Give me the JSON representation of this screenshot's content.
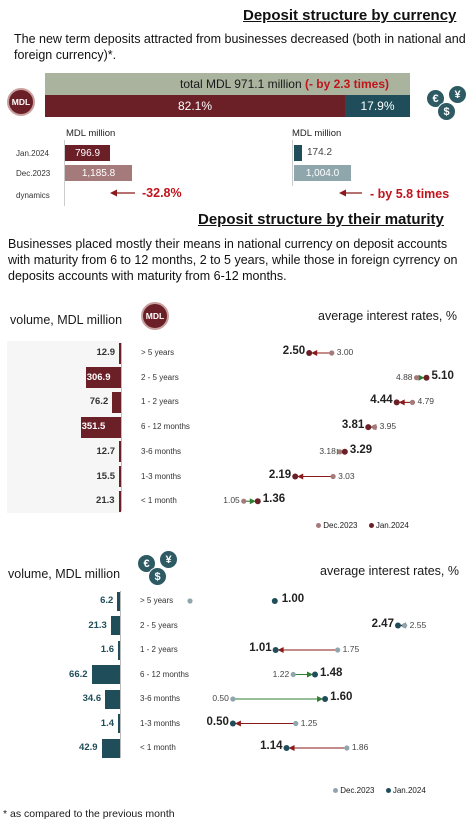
{
  "section1": {
    "title": "Deposit structure by currency",
    "description": "The new term deposits attracted from businesses decreased (both in national and foreign currency)*.",
    "mdl_badge": "MDL",
    "total_label": "total MDL 971.1 million",
    "total_change": "(- by 2.3 times)",
    "share_mdl": "82.1%",
    "share_fx": "17.9%",
    "unit_left": "MDL million",
    "unit_right": "MDL million",
    "row_jan": "Jan.2024",
    "row_dec": "Dec.2023",
    "row_dyn": "dynamics",
    "mdl_jan": "796.9",
    "mdl_dec": "1,185.8",
    "fx_jan": "174.2",
    "fx_dec": "1,004.0",
    "mdl_dynamics": "-32.8%",
    "fx_dynamics": "- by 5.8 times",
    "currency_icons": [
      "euro-coin",
      "dollar-coin",
      "yen-coin"
    ]
  },
  "section2": {
    "title": "Deposit structure by their maturity",
    "description": "Businesses placed mostly their means in national currency on deposit accounts with maturity from 6 to 12 months,  2 to 5 years, while those in foreign cyrrency on deposits accounts with maturity from 6-12 months."
  },
  "colors": {
    "mdl_dark": "#6b2027",
    "mdl_light": "#a57a7b",
    "fx_dark": "#1f4e5a",
    "fx_light": "#8fa7ac",
    "arrow_red": "#8b1a1a",
    "arrow_green": "#2e7d32",
    "share_grey": "#a9b39e"
  },
  "chart_data": [
    {
      "type": "bar",
      "currency": "MDL",
      "ylabel": "volume, MDL million",
      "categories": [
        "> 5 years",
        "2 - 5 years",
        "1 - 2 years",
        "6 - 12 months",
        "3-6 months",
        "1-3 months",
        "< 1 month"
      ],
      "values": [
        12.9,
        306.9,
        76.2,
        351.5,
        12.7,
        15.5,
        21.3
      ],
      "value_labels": [
        "12.9",
        "306.9",
        "76.2",
        "351.5",
        "12.7",
        "15.5",
        "21.3"
      ]
    },
    {
      "type": "scatter",
      "currency": "MDL",
      "title": "average interest rates, %",
      "categories": [
        "> 5 years",
        "2 - 5 years",
        "1 - 2 years",
        "6 - 12 months",
        "3-6 months",
        "1-3 months",
        "< 1 month"
      ],
      "series": [
        {
          "name": "Dec.2023",
          "values": [
            3.0,
            4.88,
            4.79,
            3.95,
            3.18,
            3.03,
            1.05
          ],
          "labels": [
            "3.00",
            "4.88",
            "4.79",
            "3.95",
            "3.18",
            "3.03",
            "1.05"
          ]
        },
        {
          "name": "Jan.2024",
          "values": [
            2.5,
            5.1,
            4.44,
            3.81,
            3.29,
            2.19,
            1.36
          ],
          "labels": [
            "2.50",
            "5.10",
            "4.44",
            "3.81",
            "3.29",
            "2.19",
            "1.36"
          ]
        }
      ],
      "xlim": [
        0.7,
        5.4
      ]
    },
    {
      "type": "bar",
      "currency": "foreign",
      "ylabel": "volume, MDL million",
      "categories": [
        "> 5 years",
        "2 - 5 years",
        "1 - 2 years",
        "6 - 12 months",
        "3-6 months",
        "1-3 months",
        "< 1 month"
      ],
      "values": [
        6.2,
        21.3,
        1.6,
        66.2,
        34.6,
        1.4,
        42.9
      ],
      "value_labels": [
        "6.2",
        "21.3",
        "1.6",
        "66.2",
        "34.6",
        "1.4",
        "42.9"
      ]
    },
    {
      "type": "scatter",
      "currency": "foreign",
      "title": "average interest rates, %",
      "categories": [
        "> 5 years",
        "2 - 5 years",
        "1 - 2 years",
        "6 - 12 months",
        "3-6 months",
        "1-3 months",
        "< 1 month"
      ],
      "series": [
        {
          "name": "Dec.2023",
          "values": [
            null,
            2.55,
            1.75,
            1.22,
            0.5,
            1.25,
            1.86
          ],
          "labels": [
            "",
            "2.55",
            "1.75",
            "1.22",
            "0.50",
            "1.25",
            "1.86"
          ]
        },
        {
          "name": "Jan.2024",
          "values": [
            1.0,
            2.47,
            1.01,
            1.48,
            1.6,
            0.5,
            1.14
          ],
          "labels": [
            "1.00",
            "2.47",
            "1.01",
            "1.48",
            "1.60",
            "0.50",
            "1.14"
          ]
        }
      ],
      "xlim": [
        0.0,
        2.9
      ]
    }
  ],
  "footnote": "* as compared to the previous month"
}
